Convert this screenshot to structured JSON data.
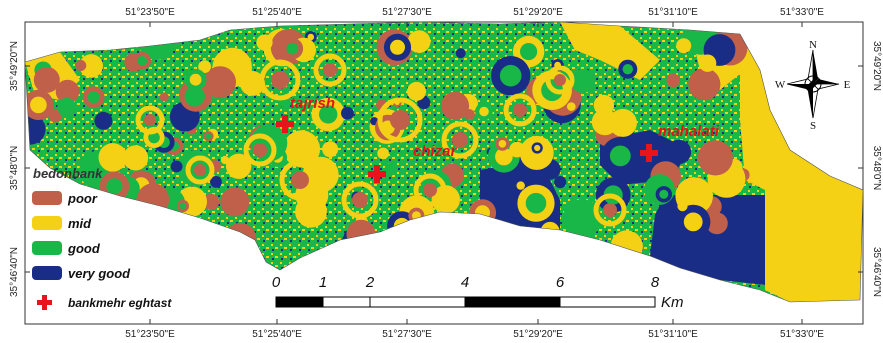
{
  "map": {
    "coords_top": [
      "51°23'50\"E",
      "51°25'40\"E",
      "51°27'30\"E",
      "51°29'20\"E",
      "51°31'10\"E",
      "51°33'0\"E"
    ],
    "coords_bottom": [
      "51°23'50\"E",
      "51°25'40\"E",
      "51°27'30\"E",
      "51°29'20\"E",
      "51°31'10\"E",
      "51°33'0\"E"
    ],
    "coords_left": [
      "35°49'20\"N",
      "35°48'0\"N",
      "35°46'40\"N"
    ],
    "coords_right": [
      "35°49'20\"N",
      "35°48'0\"N",
      "35°46'40\"N"
    ]
  },
  "places": [
    {
      "name": "tajrish"
    },
    {
      "name": "chizar"
    },
    {
      "name": "mahalati"
    }
  ],
  "legend": {
    "title": "bedonbank",
    "items": [
      {
        "label": "poor",
        "color": "#c0604a"
      },
      {
        "label": "mid",
        "color": "#f5d116"
      },
      {
        "label": "good",
        "color": "#19b748"
      },
      {
        "label": "very good",
        "color": "#1a2d86"
      }
    ],
    "marker_label": "bankmehr eghtast",
    "marker_color": "#e8141b"
  },
  "scale_bar": {
    "ticks": [
      "0",
      "1",
      "2",
      "4",
      "6",
      "8"
    ],
    "unit": "Km"
  },
  "compass": {
    "n": "N",
    "s": "S",
    "e": "E",
    "w": "W"
  }
}
